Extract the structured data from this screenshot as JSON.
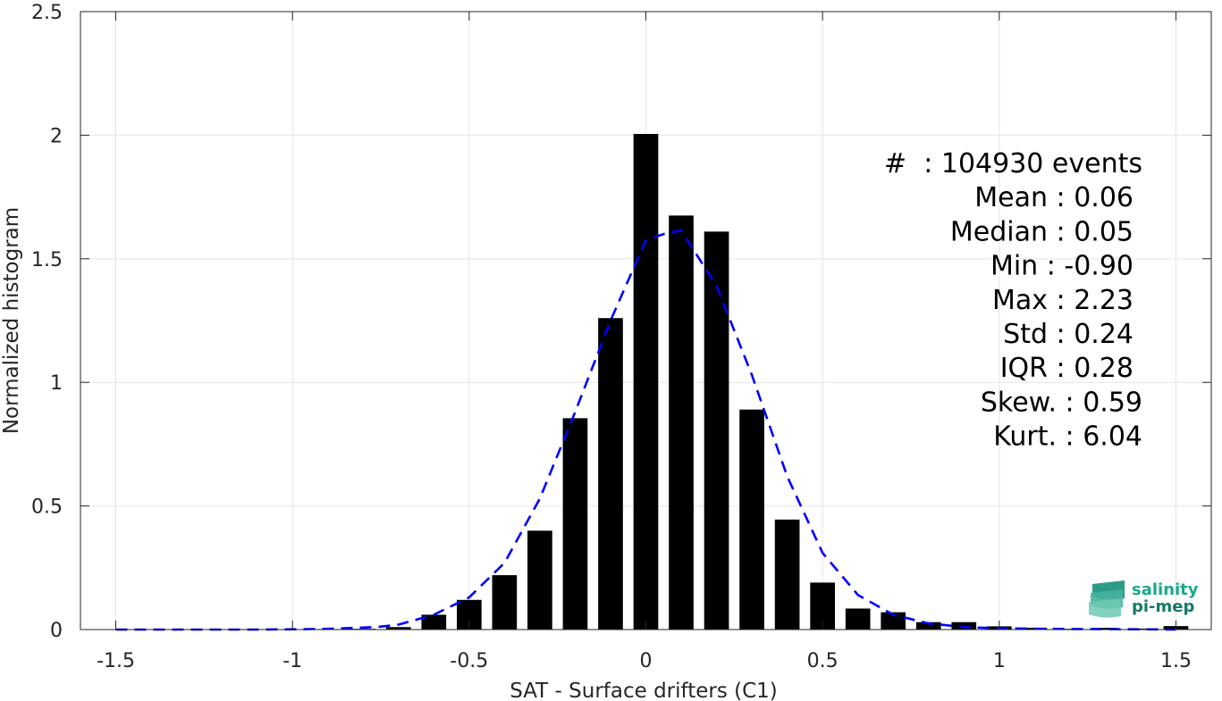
{
  "chart_data": {
    "type": "bar",
    "xlabel": "SAT - Surface drifters (C1)",
    "ylabel": "Normalized histogram",
    "xlim": [
      -1.6,
      1.6
    ],
    "ylim": [
      0,
      2.5
    ],
    "x_ticks": [
      -1.5,
      -1,
      -0.5,
      0,
      0.5,
      1,
      1.5
    ],
    "x_tick_labels": [
      "-1.5",
      "-1",
      "-0.5",
      "0",
      "0.5",
      "1",
      "1.5"
    ],
    "y_ticks": [
      0,
      0.5,
      1,
      1.5,
      2,
      2.5
    ],
    "y_tick_labels": [
      "0",
      "0.5",
      "1",
      "1.5",
      "2",
      "2.5"
    ],
    "grid": true,
    "bar_width": 0.07,
    "bar_color": "#000000",
    "bars": {
      "x": [
        -0.9,
        -0.8,
        -0.7,
        -0.6,
        -0.5,
        -0.4,
        -0.3,
        -0.2,
        -0.1,
        0.0,
        0.1,
        0.2,
        0.3,
        0.4,
        0.5,
        0.6,
        0.7,
        0.8,
        0.9,
        1.0,
        1.1,
        1.2,
        1.3,
        1.4,
        1.5
      ],
      "values": [
        0.002,
        0.003,
        0.01,
        0.06,
        0.12,
        0.22,
        0.4,
        0.855,
        1.26,
        2.005,
        1.675,
        1.61,
        0.89,
        0.445,
        0.19,
        0.085,
        0.07,
        0.03,
        0.03,
        0.013,
        0.007,
        0.003,
        0.007,
        0.004,
        0.014
      ]
    },
    "fit_curve": {
      "style": "dashed",
      "color": "#0000ff",
      "x": [
        -1.5,
        -1.3,
        -1.1,
        -1.0,
        -0.9,
        -0.8,
        -0.75,
        -0.7,
        -0.6,
        -0.5,
        -0.4,
        -0.3,
        -0.2,
        -0.1,
        0.0,
        0.05,
        0.1,
        0.2,
        0.3,
        0.4,
        0.5,
        0.6,
        0.7,
        0.8,
        0.9,
        1.0,
        1.2,
        1.4,
        1.5
      ],
      "values": [
        0.0,
        0.0,
        0.0,
        0.001,
        0.003,
        0.008,
        0.012,
        0.02,
        0.06,
        0.13,
        0.27,
        0.53,
        0.88,
        1.25,
        1.575,
        1.6,
        1.615,
        1.39,
        1.03,
        0.62,
        0.31,
        0.14,
        0.06,
        0.025,
        0.01,
        0.005,
        0.002,
        0.001,
        0.0
      ]
    },
    "stats": [
      "#  : 104930 events",
      "Mean : 0.06",
      "Median : 0.05",
      "Min : -0.90",
      "Max : 2.23",
      "Std : 0.24",
      "IQR : 0.28",
      "Skew. : 0.59",
      "Kurt. : 6.04"
    ]
  },
  "logo": {
    "line1": "salinity",
    "line2": "pi-mep"
  }
}
